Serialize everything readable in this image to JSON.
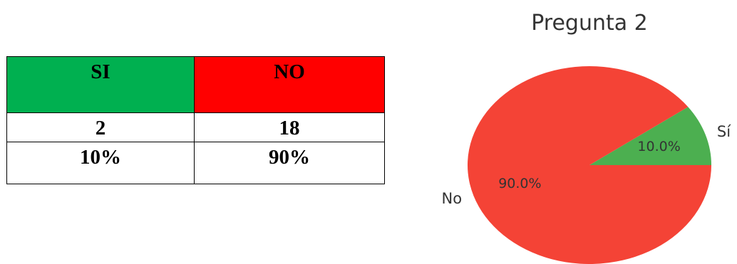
{
  "table": {
    "header": [
      {
        "label": "SI",
        "color": "#00B050"
      },
      {
        "label": "NO",
        "color": "#FF0000"
      }
    ],
    "counts": [
      "2",
      "18"
    ],
    "percents": [
      "10%",
      "90%"
    ]
  },
  "chart_data": {
    "type": "pie",
    "title": "Pregunta 2",
    "labels": [
      "Sí",
      "No"
    ],
    "values": [
      10.0,
      90.0
    ],
    "autopct": [
      "10.0%",
      "90.0%"
    ],
    "colors": [
      "#4CAF50",
      "#F44336"
    ],
    "start_angle_deg": 0,
    "direction": "counterclockwise"
  }
}
